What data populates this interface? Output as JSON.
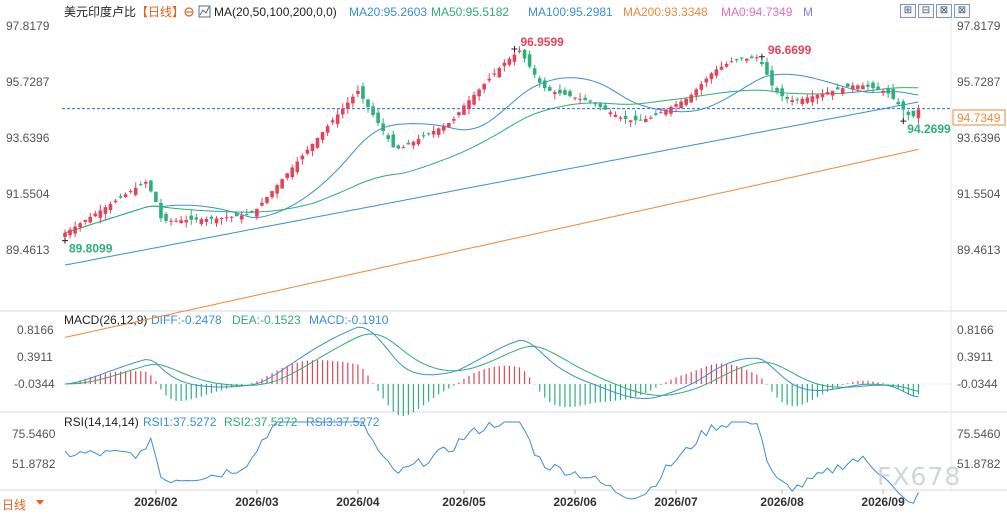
{
  "header": {
    "symbol": "美元印度卢比",
    "period_tag": "【日线】",
    "ma_settings": "MA(20,50,100,200,0,0)",
    "ma_values": [
      {
        "label": "MA20:95.2603",
        "color": "#3b8ed8"
      },
      {
        "label": "MA50:95.5182",
        "color": "#2fae73"
      },
      {
        "label": "MA100:95.2981",
        "color": "#3a91d0"
      },
      {
        "label": "MA200:93.3348",
        "color": "#ee8a3a"
      },
      {
        "label": "MA0:94.7349",
        "color": "#e86fb2"
      },
      {
        "label": "M",
        "color": "#8c7be0"
      }
    ]
  },
  "window_controls": {
    "icons": [
      "maximize-icon",
      "restore-icon",
      "collapse-icon",
      "close-icon"
    ],
    "glyphs": [
      "⊞",
      "⊟",
      "⊠",
      "⊠"
    ]
  },
  "indicators": {
    "macd": {
      "label": "MACD(26,12,9)",
      "diff": "DIFF:-0.2478",
      "dea": "DEA:-0.1523",
      "macd": "MACD:-0.1910",
      "ticks": [
        "0.8166",
        "0.3911",
        "-0.0344"
      ]
    },
    "rsi": {
      "label": "RSI(14,14,14)",
      "rsi1": "RSI1:37.5272",
      "rsi2": "RSI2:37.5272",
      "rsi3": "RSI3:37.5272",
      "ticks": [
        "75.5460",
        "51.8782"
      ]
    }
  },
  "period_selector": {
    "label": "日线"
  },
  "watermark": "FX678",
  "colors": {
    "up": "#e2445c",
    "down": "#2db07a",
    "ma20": "#3b8ed8",
    "ma50": "#2fae73",
    "ma100": "#3a91d0",
    "ma200": "#ee8a3a",
    "price_line": "#2a6fd6",
    "last_price": "#ee8a3a",
    "axis_text": "#555555"
  },
  "chart_data": {
    "type": "candlestick",
    "title": "美元印度卢比",
    "x_labels": [
      "2026/02",
      "2026/03",
      "2026/04",
      "2026/05",
      "2026/06",
      "2026/07",
      "2026/08",
      "2026/09"
    ],
    "x_label_index": [
      18,
      38,
      58,
      79,
      101,
      121,
      142,
      162
    ],
    "y_ticks": [
      "97.8179",
      "95.7287",
      "93.6396",
      "91.5504",
      "89.4613"
    ],
    "y_range": [
      89.46,
      97.82
    ],
    "annotations": {
      "high": {
        "label": "96.9599",
        "index": 89,
        "value": 96.96
      },
      "high2": {
        "label": "96.6699",
        "index": 138,
        "value": 96.67
      },
      "low": {
        "label": "89.8099",
        "index": 0,
        "value": 89.81
      },
      "recent_low": {
        "label": "94.2699",
        "index": 166,
        "value": 94.27
      }
    },
    "last_price": {
      "label": "94.7349",
      "value": 94.7349
    },
    "candle_count": 170,
    "closes": [
      90.1,
      90.22,
      90.34,
      90.46,
      90.58,
      90.7,
      90.82,
      90.94,
      91.06,
      91.18,
      91.3,
      91.42,
      91.54,
      91.66,
      91.78,
      91.9,
      92.0,
      91.65,
      91.25,
      90.65,
      90.55,
      90.55,
      90.56,
      90.57,
      90.58,
      90.59,
      90.6,
      90.61,
      90.62,
      90.63,
      90.64,
      90.66,
      90.68,
      90.7,
      90.72,
      90.75,
      90.8,
      90.85,
      91.0,
      91.22,
      91.44,
      91.66,
      91.88,
      92.1,
      92.32,
      92.54,
      92.76,
      92.98,
      93.2,
      93.42,
      93.64,
      93.86,
      94.08,
      94.3,
      94.52,
      94.74,
      94.96,
      95.18,
      95.4,
      95.1,
      94.8,
      94.5,
      94.2,
      93.9,
      93.6,
      93.3,
      93.25,
      93.3,
      93.4,
      93.5,
      93.6,
      93.7,
      93.8,
      93.9,
      94.0,
      94.1,
      94.2,
      94.35,
      94.6,
      94.85,
      95.05,
      95.25,
      95.45,
      95.65,
      95.85,
      96.05,
      96.25,
      96.45,
      96.6,
      96.75,
      96.9,
      96.6,
      96.3,
      96.0,
      95.7,
      95.5,
      95.4,
      95.35,
      95.3,
      95.25,
      95.2,
      95.15,
      95.1,
      95.05,
      95.0,
      94.9,
      94.8,
      94.7,
      94.6,
      94.5,
      94.4,
      94.35,
      94.3,
      94.3,
      94.3,
      94.35,
      94.4,
      94.5,
      94.6,
      94.7,
      94.8,
      94.9,
      95.0,
      95.1,
      95.25,
      95.45,
      95.65,
      95.85,
      96.05,
      96.2,
      96.3,
      96.4,
      96.5,
      96.55,
      96.6,
      96.6,
      96.62,
      96.65,
      96.4,
      96.0,
      95.6,
      95.35,
      95.2,
      95.1,
      95.05,
      95.05,
      95.1,
      95.15,
      95.2,
      95.25,
      95.3,
      95.35,
      95.4,
      95.45,
      95.5,
      95.55,
      95.6,
      95.6,
      95.6,
      95.55,
      95.5,
      95.45,
      95.4,
      95.3,
      95.1,
      94.9,
      94.7,
      94.5,
      94.45,
      94.7
    ]
  }
}
